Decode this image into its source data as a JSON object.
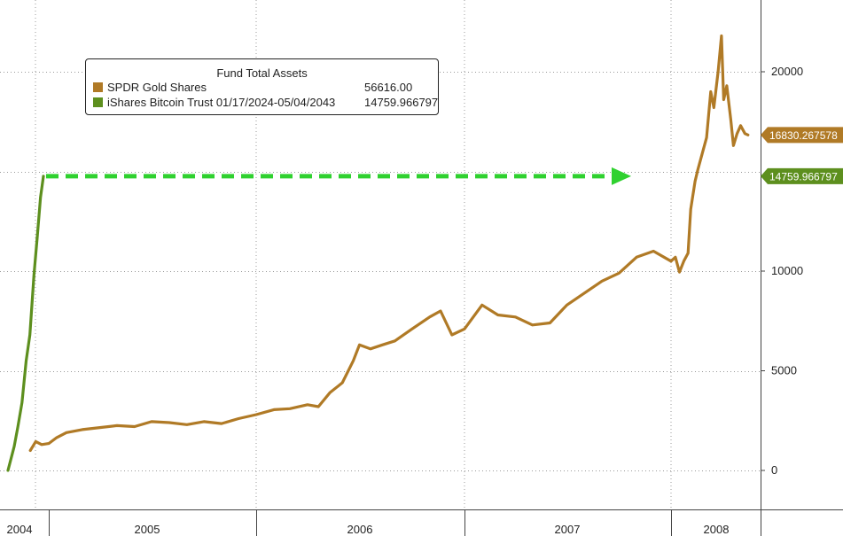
{
  "chart_data": {
    "type": "line",
    "legend": {
      "title": "Fund Total Assets",
      "placement": "top-left"
    },
    "colors": {
      "gold": "#b07a26",
      "bitcoin": "#5d8f1e",
      "arrow": "#2fd12f",
      "grid": "#9a9a9a"
    },
    "x_tick_labels": [
      "2004",
      "2005",
      "2006",
      "2007",
      "2008"
    ],
    "y_tick_labels": [
      "0",
      "5000",
      "10000",
      "20000"
    ],
    "ylim": [
      -1000,
      23500
    ],
    "grid": true,
    "series": [
      {
        "name": "SPDR Gold Shares",
        "legend_value": "56616.00",
        "last_value_label": "16830.267578",
        "x_unit": "date",
        "points": [
          [
            "2004-11-18",
            1000
          ],
          [
            "2004-12-01",
            1450
          ],
          [
            "2004-12-15",
            1300
          ],
          [
            "2005-01-01",
            1350
          ],
          [
            "2005-01-15",
            1650
          ],
          [
            "2005-02-01",
            1900
          ],
          [
            "2005-03-01",
            2050
          ],
          [
            "2005-04-01",
            2150
          ],
          [
            "2005-05-01",
            2250
          ],
          [
            "2005-06-01",
            2200
          ],
          [
            "2005-07-01",
            2450
          ],
          [
            "2005-08-01",
            2400
          ],
          [
            "2005-09-01",
            2300
          ],
          [
            "2005-10-01",
            2450
          ],
          [
            "2005-11-01",
            2350
          ],
          [
            "2005-12-01",
            2600
          ],
          [
            "2006-01-01",
            2800
          ],
          [
            "2006-02-01",
            3050
          ],
          [
            "2006-03-01",
            3100
          ],
          [
            "2006-04-01",
            3300
          ],
          [
            "2006-04-20",
            3200
          ],
          [
            "2006-05-10",
            3900
          ],
          [
            "2006-06-01",
            4400
          ],
          [
            "2006-06-20",
            5500
          ],
          [
            "2006-07-01",
            6300
          ],
          [
            "2006-07-20",
            6100
          ],
          [
            "2006-08-10",
            6300
          ],
          [
            "2006-09-01",
            6500
          ],
          [
            "2006-10-01",
            7100
          ],
          [
            "2006-11-01",
            7700
          ],
          [
            "2006-11-20",
            8000
          ],
          [
            "2006-12-10",
            6800
          ],
          [
            "2007-01-01",
            7100
          ],
          [
            "2007-02-01",
            8300
          ],
          [
            "2007-03-01",
            7800
          ],
          [
            "2007-04-01",
            7700
          ],
          [
            "2007-05-01",
            7300
          ],
          [
            "2007-06-01",
            7400
          ],
          [
            "2007-07-01",
            8300
          ],
          [
            "2007-08-01",
            8900
          ],
          [
            "2007-09-01",
            9500
          ],
          [
            "2007-10-01",
            9900
          ],
          [
            "2007-11-01",
            10700
          ],
          [
            "2007-12-01",
            11000
          ],
          [
            "2008-01-01",
            10500
          ],
          [
            "2008-02-01",
            10700
          ],
          [
            "2008-03-01",
            9950
          ],
          [
            "2008-04-01",
            10500
          ],
          [
            "2008-05-01",
            10900
          ],
          [
            "2008-05-20",
            13100
          ],
          [
            "2008-06-20",
            14500
          ],
          [
            "2008-07-10",
            15100
          ],
          [
            "2008-08-10",
            15900
          ],
          [
            "2008-09-10",
            16700
          ],
          [
            "2008-10-10",
            19000
          ],
          [
            "2008-11-01",
            18200
          ],
          [
            "2008-12-01",
            20000
          ],
          [
            "2008-12-25",
            21800
          ],
          [
            "2009-01-10",
            18600
          ],
          [
            "2009-02-01",
            19300
          ],
          [
            "2009-03-01",
            17600
          ],
          [
            "2009-03-20",
            16300
          ],
          [
            "2009-04-15",
            16900
          ],
          [
            "2009-05-10",
            17300
          ],
          [
            "2009-06-10",
            16900
          ],
          [
            "2009-07-01",
            16830
          ]
        ]
      },
      {
        "name": "iShares Bitcoin Trust 01/17/2024-05/04/2043",
        "legend_value": "14759.966797",
        "last_value_label": "14759.966797",
        "x_unit": "date",
        "points": [
          [
            "2024-01-17",
            0
          ],
          [
            "2024-02-01",
            1200
          ],
          [
            "2024-02-10",
            2200
          ],
          [
            "2024-02-20",
            3400
          ],
          [
            "2024-03-01",
            5500
          ],
          [
            "2024-03-10",
            6800
          ],
          [
            "2024-03-20",
            9800
          ],
          [
            "2024-03-28",
            11700
          ],
          [
            "2024-04-05",
            13700
          ],
          [
            "2024-04-12",
            14759.966797
          ]
        ]
      }
    ],
    "annotation": {
      "type": "dashed-arrow",
      "y": 14759.966797,
      "from_date": "2004-12-01",
      "to_date": "2008-10-01"
    }
  }
}
